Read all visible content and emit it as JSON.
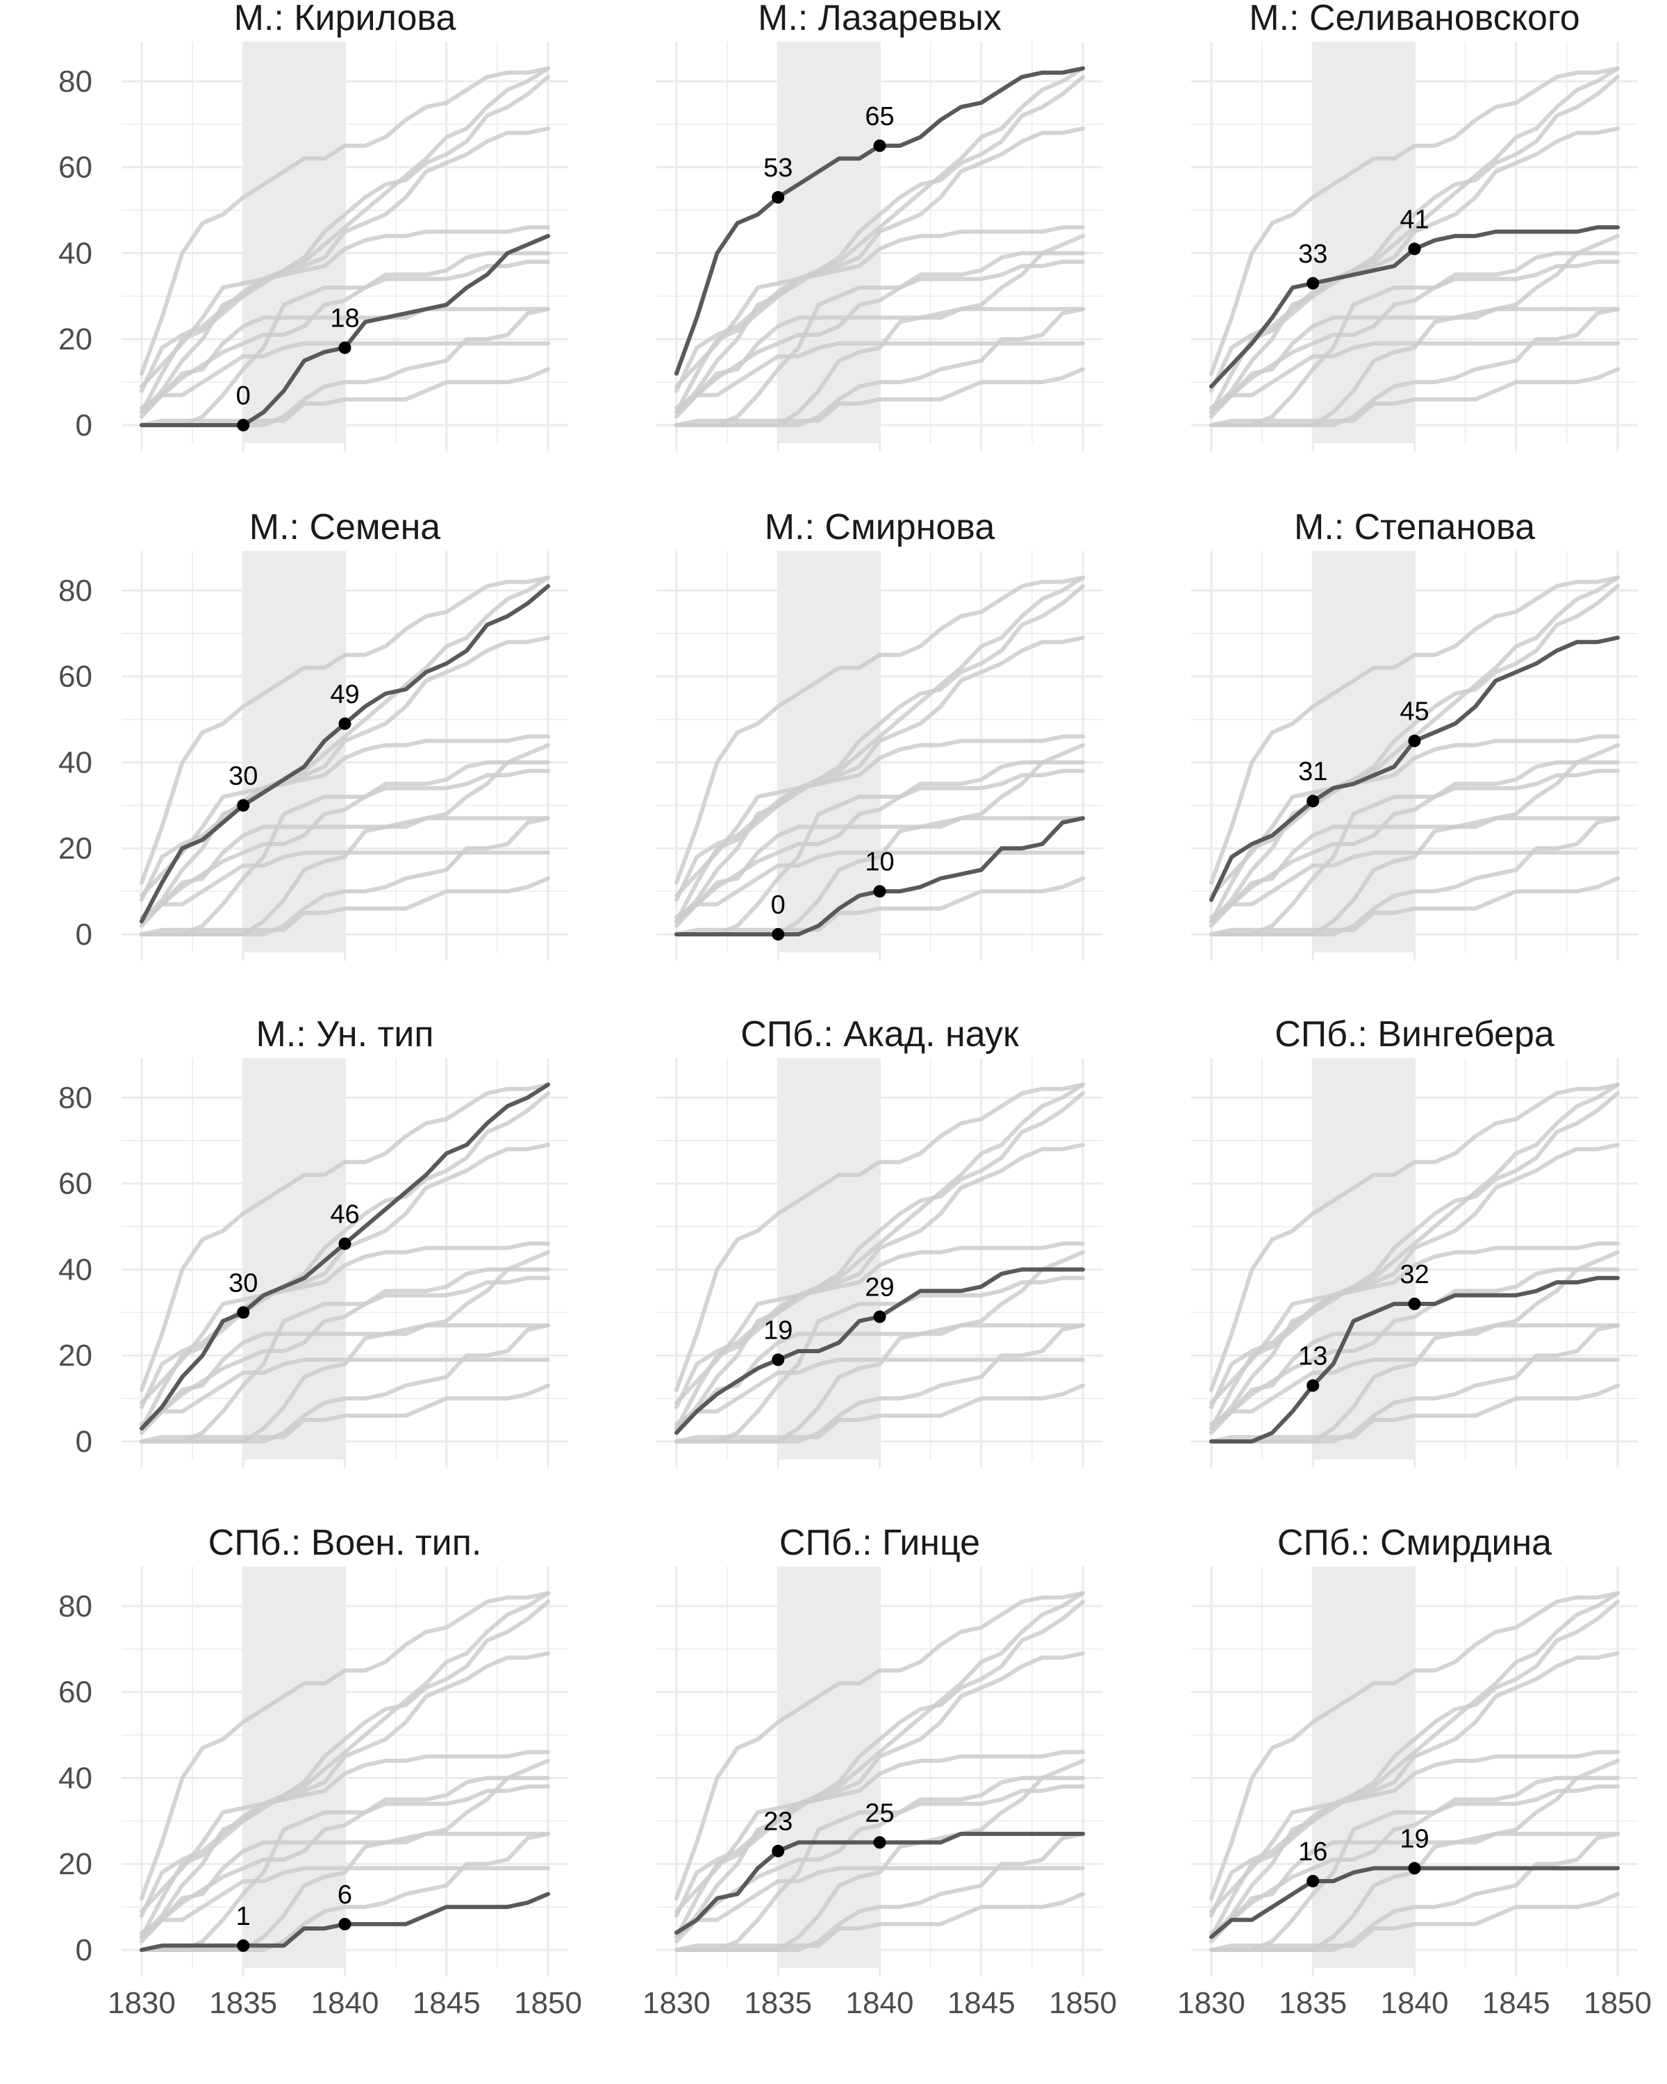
{
  "chart_data": {
    "type": "line",
    "layout": "small-multiples, 4 rows x 3 columns",
    "xlim": [
      1830,
      1850
    ],
    "ylim": [
      0,
      85
    ],
    "x_ticks": [
      1830,
      1835,
      1840,
      1845,
      1850
    ],
    "x_tick_labels": [
      "1830",
      "1835",
      "1840",
      "1845",
      "1850"
    ],
    "y_ticks": [
      0,
      20,
      40,
      60,
      80
    ],
    "y_tick_labels": [
      "0",
      "20",
      "40",
      "60",
      "80"
    ],
    "shaded_band": [
      1835,
      1840
    ],
    "grid": true,
    "x": [
      1830,
      1831,
      1832,
      1833,
      1834,
      1835,
      1836,
      1837,
      1838,
      1839,
      1840,
      1841,
      1842,
      1843,
      1844,
      1845,
      1846,
      1847,
      1848,
      1849,
      1850
    ],
    "colors": {
      "highlight": "#595959",
      "background": "#cccccc",
      "band": "#ebebeb",
      "grid": "#ebebeb",
      "point": "#000000",
      "text": "#1a1a1a",
      "tick_text": "#4d4d4d"
    },
    "panels": [
      {
        "title": "М.: Кирилова",
        "values": [
          0,
          0,
          0,
          0,
          0,
          0,
          3,
          8,
          15,
          17,
          18,
          24,
          25,
          26,
          27,
          28,
          32,
          35,
          40,
          42,
          44
        ],
        "labels": [
          "0",
          "18"
        ]
      },
      {
        "title": "М.: Лазаревых",
        "values": [
          12,
          25,
          40,
          47,
          49,
          53,
          56,
          59,
          62,
          62,
          65,
          65,
          67,
          71,
          74,
          75,
          78,
          81,
          82,
          82,
          83
        ],
        "labels": [
          "53",
          "65"
        ]
      },
      {
        "title": "М.: Селивановского",
        "values": [
          9,
          14,
          19,
          25,
          32,
          33,
          34,
          35,
          36,
          37,
          41,
          43,
          44,
          44,
          45,
          45,
          45,
          45,
          45,
          46,
          46
        ],
        "labels": [
          "33",
          "41"
        ]
      },
      {
        "title": "М.: Семена",
        "values": [
          3,
          12,
          20,
          22,
          26,
          30,
          33,
          36,
          39,
          45,
          49,
          53,
          56,
          57,
          61,
          63,
          66,
          72,
          74,
          77,
          81
        ],
        "labels": [
          "30",
          "49"
        ]
      },
      {
        "title": "М.: Смирнова",
        "values": [
          0,
          0,
          0,
          0,
          0,
          0,
          0,
          2,
          6,
          9,
          10,
          10,
          11,
          13,
          14,
          15,
          20,
          20,
          21,
          26,
          27
        ],
        "labels": [
          "0",
          "10"
        ]
      },
      {
        "title": "М.: Степанова",
        "values": [
          8,
          18,
          21,
          23,
          27,
          31,
          34,
          35,
          37,
          39,
          45,
          47,
          49,
          53,
          59,
          61,
          63,
          66,
          68,
          68,
          69
        ],
        "labels": [
          "31",
          "45"
        ]
      },
      {
        "title": "М.: Ун. тип",
        "values": [
          3,
          8,
          15,
          20,
          28,
          30,
          34,
          36,
          38,
          42,
          46,
          50,
          54,
          58,
          62,
          67,
          69,
          74,
          78,
          80,
          83
        ],
        "labels": [
          "30",
          "46"
        ]
      },
      {
        "title": "СПб.: Акад. наук",
        "values": [
          2,
          7,
          11,
          14,
          17,
          19,
          21,
          21,
          23,
          28,
          29,
          32,
          35,
          35,
          35,
          36,
          39,
          40,
          40,
          40,
          40
        ],
        "labels": [
          "19",
          "29"
        ]
      },
      {
        "title": "СПб.: Вингебера",
        "values": [
          0,
          0,
          0,
          2,
          7,
          13,
          18,
          28,
          30,
          32,
          32,
          32,
          34,
          34,
          34,
          34,
          35,
          37,
          37,
          38,
          38
        ],
        "labels": [
          "13",
          "32"
        ]
      },
      {
        "title": "СПб.: Воен. тип.",
        "values": [
          0,
          1,
          1,
          1,
          1,
          1,
          1,
          1,
          5,
          5,
          6,
          6,
          6,
          6,
          8,
          10,
          10,
          10,
          10,
          11,
          13
        ],
        "labels": [
          "1",
          "6"
        ]
      },
      {
        "title": "СПб.: Гинце",
        "values": [
          4,
          7,
          12,
          13,
          19,
          23,
          25,
          25,
          25,
          25,
          25,
          25,
          25,
          25,
          27,
          27,
          27,
          27,
          27,
          27,
          27
        ],
        "labels": [
          "23",
          "25"
        ]
      },
      {
        "title": "СПб.: Смирдина",
        "values": [
          3,
          7,
          7,
          10,
          13,
          16,
          16,
          18,
          19,
          19,
          19,
          19,
          19,
          19,
          19,
          19,
          19,
          19,
          19,
          19,
          19
        ],
        "labels": [
          "16",
          "19"
        ]
      }
    ]
  }
}
